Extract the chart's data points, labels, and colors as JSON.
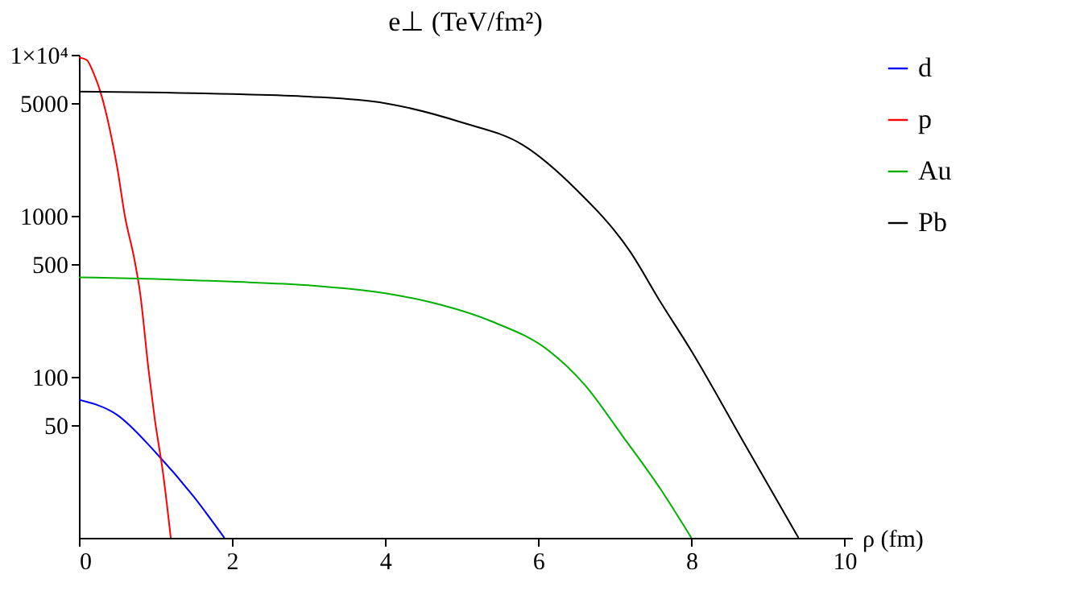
{
  "chart_data": {
    "type": "line",
    "title": "e⊥ (TeV/fm²)",
    "xlabel": "ρ (fm)",
    "xlim": [
      0,
      10.1
    ],
    "xticks": [
      0,
      2,
      4,
      6,
      8,
      10
    ],
    "ylim": [
      10,
      10000
    ],
    "yticks": [
      50,
      100,
      500,
      1000,
      5000,
      {
        "value": 10000,
        "label": "1×10⁴"
      }
    ],
    "log": "y",
    "grid": false,
    "legend": "right",
    "series": [
      {
        "name": "d",
        "color": "#0000ff",
        "x": [
          0,
          0.5,
          1.0,
          1.5,
          1.9
        ],
        "values": [
          72,
          58,
          34,
          18,
          10
        ]
      },
      {
        "name": "p",
        "color": "#ff0000",
        "x": [
          0,
          0.1,
          0.2,
          0.28,
          0.4,
          0.5,
          0.6,
          0.73,
          0.8,
          0.91,
          0.99,
          1.1,
          1.2
        ],
        "values": [
          9600,
          9300,
          7500,
          5900,
          3500,
          2000,
          1000,
          520,
          330,
          110,
          55,
          25,
          10
        ]
      },
      {
        "name": "Au",
        "color": "#00b000",
        "x": [
          0,
          1,
          2,
          3,
          4,
          4.6,
          5.4,
          6.14,
          6.6,
          7.1,
          7.6,
          8.0
        ],
        "values": [
          415,
          405,
          390,
          370,
          330,
          290,
          220,
          145,
          90,
          43,
          20,
          10
        ]
      },
      {
        "name": "Pb",
        "color": "#000000",
        "x": [
          0,
          2,
          3,
          4,
          5,
          5.8,
          6.5,
          7.2,
          7.6,
          8.0,
          8.7,
          9.4
        ],
        "values": [
          5900,
          5700,
          5500,
          5000,
          3800,
          2750,
          1450,
          600,
          290,
          145,
          38,
          10
        ]
      }
    ]
  }
}
